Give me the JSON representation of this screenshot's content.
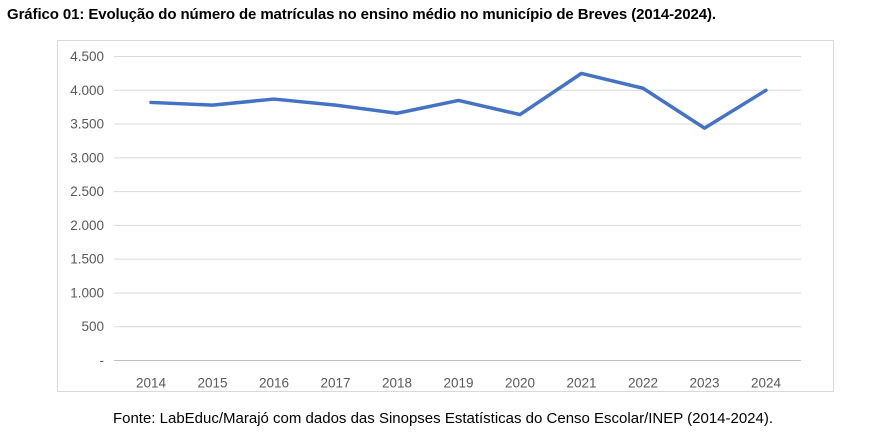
{
  "page": {
    "title": "Gráfico 01: Evolução do número de matrículas no ensino médio no município de Breves (2014-2024).",
    "source": "Fonte: LabEduc/Marajó com dados das Sinopses Estatísticas do Censo Escolar/INEP (2014-2024)."
  },
  "chart_data": {
    "type": "line",
    "title": "Gráfico 01: Evolução do número de matrículas no ensino médio no município de Breves (2014-2024).",
    "categories": [
      "2014",
      "2015",
      "2016",
      "2017",
      "2018",
      "2019",
      "2020",
      "2021",
      "2022",
      "2023",
      "2024"
    ],
    "values": [
      3820,
      3780,
      3870,
      3780,
      3660,
      3850,
      3640,
      4250,
      4030,
      3440,
      4000
    ],
    "xlabel": "",
    "ylabel": "",
    "ylim": [
      0,
      4500
    ],
    "ytick_step": 500,
    "ytick_labels": [
      "-",
      "500",
      "1.000",
      "1.500",
      "2.000",
      "2.500",
      "3.000",
      "3.500",
      "4.000",
      "4.500"
    ],
    "grid": true,
    "legend_position": "none",
    "line_color": "#4472c4",
    "gridline_color": "#d9d9d9",
    "axis_line_color": "#bfbfbf",
    "tick_label_color": "#595959"
  }
}
